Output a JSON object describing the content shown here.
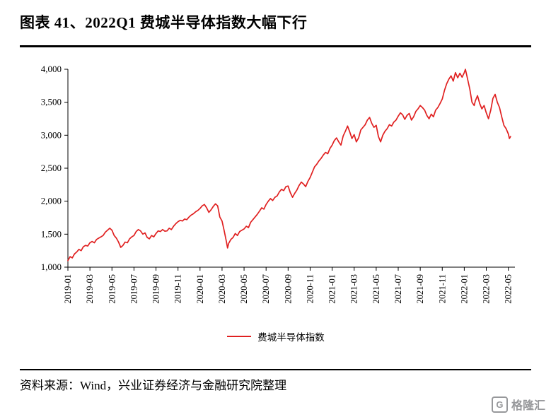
{
  "header": {
    "title": "图表 41、2022Q1 费城半导体指数大幅下行"
  },
  "footer": {
    "source": "资料来源：Wind，兴业证券经济与金融研究院整理",
    "watermark": "格隆汇",
    "watermark_letter": "G"
  },
  "chart_data": {
    "type": "line",
    "title": "图表 41、2022Q1 费城半导体指数大幅下行",
    "legend": [
      "费城半导体指数"
    ],
    "legend_position": "bottom",
    "grid": false,
    "line_color": "#e02020",
    "xlabel": "",
    "ylabel": "",
    "ylim": [
      1000,
      4000
    ],
    "y_ticks": [
      1000,
      1500,
      2000,
      2500,
      3000,
      3500,
      4000
    ],
    "y_tick_labels": [
      "1,000",
      "1,500",
      "2,000",
      "2,500",
      "3,000",
      "3,500",
      "4,000"
    ],
    "x_tick_labels": [
      "2019-01",
      "2019-03",
      "2019-05",
      "2019-07",
      "2019-09",
      "2019-11",
      "2020-01",
      "2020-03",
      "2020-05",
      "2020-07",
      "2020-09",
      "2020-11",
      "2021-01",
      "2021-03",
      "2021-05",
      "2021-07",
      "2021-09",
      "2021-11",
      "2022-01",
      "2022-03",
      "2022-05"
    ],
    "x_tick_positions_months": [
      0,
      2,
      4,
      6,
      8,
      10,
      12,
      14,
      16,
      18,
      20,
      22,
      24,
      26,
      28,
      30,
      32,
      34,
      36,
      38,
      40
    ],
    "x_domain_months": [
      0,
      40.6
    ],
    "series": [
      {
        "name": "费城半导体指数",
        "points": [
          [
            0,
            1100
          ],
          [
            0.2,
            1160
          ],
          [
            0.4,
            1140
          ],
          [
            0.6,
            1200
          ],
          [
            0.8,
            1230
          ],
          [
            1,
            1270
          ],
          [
            1.2,
            1250
          ],
          [
            1.4,
            1310
          ],
          [
            1.6,
            1330
          ],
          [
            1.8,
            1320
          ],
          [
            2,
            1370
          ],
          [
            2.2,
            1390
          ],
          [
            2.4,
            1370
          ],
          [
            2.6,
            1420
          ],
          [
            2.8,
            1440
          ],
          [
            3,
            1460
          ],
          [
            3.2,
            1480
          ],
          [
            3.4,
            1530
          ],
          [
            3.6,
            1560
          ],
          [
            3.8,
            1590
          ],
          [
            4,
            1560
          ],
          [
            4.2,
            1480
          ],
          [
            4.4,
            1440
          ],
          [
            4.6,
            1380
          ],
          [
            4.8,
            1300
          ],
          [
            5,
            1330
          ],
          [
            5.2,
            1380
          ],
          [
            5.4,
            1370
          ],
          [
            5.6,
            1430
          ],
          [
            5.8,
            1460
          ],
          [
            6,
            1480
          ],
          [
            6.2,
            1540
          ],
          [
            6.4,
            1570
          ],
          [
            6.6,
            1550
          ],
          [
            6.8,
            1500
          ],
          [
            7,
            1520
          ],
          [
            7.2,
            1450
          ],
          [
            7.4,
            1430
          ],
          [
            7.6,
            1480
          ],
          [
            7.8,
            1460
          ],
          [
            8,
            1510
          ],
          [
            8.2,
            1550
          ],
          [
            8.4,
            1540
          ],
          [
            8.6,
            1570
          ],
          [
            8.8,
            1545
          ],
          [
            9,
            1550
          ],
          [
            9.2,
            1590
          ],
          [
            9.4,
            1570
          ],
          [
            9.6,
            1620
          ],
          [
            9.8,
            1660
          ],
          [
            10,
            1690
          ],
          [
            10.2,
            1710
          ],
          [
            10.4,
            1700
          ],
          [
            10.6,
            1730
          ],
          [
            10.8,
            1720
          ],
          [
            11,
            1760
          ],
          [
            11.2,
            1790
          ],
          [
            11.4,
            1810
          ],
          [
            11.6,
            1840
          ],
          [
            11.8,
            1860
          ],
          [
            12,
            1890
          ],
          [
            12.2,
            1930
          ],
          [
            12.4,
            1950
          ],
          [
            12.6,
            1900
          ],
          [
            12.8,
            1830
          ],
          [
            13,
            1870
          ],
          [
            13.2,
            1920
          ],
          [
            13.4,
            1960
          ],
          [
            13.6,
            1930
          ],
          [
            13.8,
            1760
          ],
          [
            14,
            1700
          ],
          [
            14.2,
            1550
          ],
          [
            14.4,
            1380
          ],
          [
            14.5,
            1290
          ],
          [
            14.6,
            1360
          ],
          [
            14.8,
            1420
          ],
          [
            15,
            1450
          ],
          [
            15.2,
            1510
          ],
          [
            15.4,
            1480
          ],
          [
            15.6,
            1540
          ],
          [
            15.8,
            1560
          ],
          [
            16,
            1580
          ],
          [
            16.2,
            1620
          ],
          [
            16.4,
            1600
          ],
          [
            16.6,
            1680
          ],
          [
            16.8,
            1720
          ],
          [
            17,
            1760
          ],
          [
            17.2,
            1800
          ],
          [
            17.4,
            1850
          ],
          [
            17.6,
            1900
          ],
          [
            17.8,
            1880
          ],
          [
            18,
            1950
          ],
          [
            18.2,
            2000
          ],
          [
            18.4,
            2040
          ],
          [
            18.6,
            2010
          ],
          [
            18.8,
            2060
          ],
          [
            19,
            2080
          ],
          [
            19.2,
            2140
          ],
          [
            19.4,
            2180
          ],
          [
            19.6,
            2160
          ],
          [
            19.8,
            2220
          ],
          [
            20,
            2230
          ],
          [
            20.2,
            2130
          ],
          [
            20.4,
            2060
          ],
          [
            20.6,
            2120
          ],
          [
            20.8,
            2170
          ],
          [
            21,
            2240
          ],
          [
            21.2,
            2290
          ],
          [
            21.4,
            2260
          ],
          [
            21.6,
            2220
          ],
          [
            21.8,
            2300
          ],
          [
            22,
            2360
          ],
          [
            22.2,
            2440
          ],
          [
            22.4,
            2520
          ],
          [
            22.6,
            2560
          ],
          [
            22.8,
            2610
          ],
          [
            23,
            2650
          ],
          [
            23.2,
            2700
          ],
          [
            23.4,
            2740
          ],
          [
            23.6,
            2720
          ],
          [
            23.8,
            2800
          ],
          [
            24,
            2850
          ],
          [
            24.2,
            2920
          ],
          [
            24.4,
            2960
          ],
          [
            24.6,
            2900
          ],
          [
            24.8,
            2850
          ],
          [
            25,
            2990
          ],
          [
            25.2,
            3060
          ],
          [
            25.4,
            3140
          ],
          [
            25.6,
            3050
          ],
          [
            25.8,
            2950
          ],
          [
            26,
            3010
          ],
          [
            26.2,
            2900
          ],
          [
            26.4,
            2960
          ],
          [
            26.6,
            3080
          ],
          [
            26.8,
            3120
          ],
          [
            27,
            3160
          ],
          [
            27.2,
            3230
          ],
          [
            27.4,
            3270
          ],
          [
            27.6,
            3180
          ],
          [
            27.8,
            3120
          ],
          [
            28,
            3150
          ],
          [
            28.2,
            2980
          ],
          [
            28.4,
            2900
          ],
          [
            28.6,
            3000
          ],
          [
            28.8,
            3060
          ],
          [
            29,
            3100
          ],
          [
            29.2,
            3160
          ],
          [
            29.4,
            3140
          ],
          [
            29.6,
            3200
          ],
          [
            29.8,
            3230
          ],
          [
            30,
            3290
          ],
          [
            30.2,
            3340
          ],
          [
            30.4,
            3310
          ],
          [
            30.6,
            3240
          ],
          [
            30.8,
            3300
          ],
          [
            31,
            3330
          ],
          [
            31.2,
            3230
          ],
          [
            31.4,
            3280
          ],
          [
            31.6,
            3360
          ],
          [
            31.8,
            3400
          ],
          [
            32,
            3450
          ],
          [
            32.2,
            3420
          ],
          [
            32.4,
            3380
          ],
          [
            32.6,
            3300
          ],
          [
            32.8,
            3250
          ],
          [
            33,
            3320
          ],
          [
            33.2,
            3280
          ],
          [
            33.4,
            3380
          ],
          [
            33.6,
            3420
          ],
          [
            33.8,
            3480
          ],
          [
            34,
            3550
          ],
          [
            34.2,
            3680
          ],
          [
            34.4,
            3780
          ],
          [
            34.6,
            3850
          ],
          [
            34.8,
            3900
          ],
          [
            35,
            3820
          ],
          [
            35.2,
            3950
          ],
          [
            35.4,
            3870
          ],
          [
            35.6,
            3940
          ],
          [
            35.8,
            3880
          ],
          [
            36,
            3950
          ],
          [
            36.1,
            4000
          ],
          [
            36.3,
            3850
          ],
          [
            36.5,
            3700
          ],
          [
            36.7,
            3500
          ],
          [
            36.9,
            3450
          ],
          [
            37,
            3520
          ],
          [
            37.2,
            3600
          ],
          [
            37.4,
            3480
          ],
          [
            37.6,
            3400
          ],
          [
            37.8,
            3450
          ],
          [
            38,
            3340
          ],
          [
            38.2,
            3250
          ],
          [
            38.4,
            3380
          ],
          [
            38.6,
            3560
          ],
          [
            38.8,
            3620
          ],
          [
            39,
            3500
          ],
          [
            39.2,
            3420
          ],
          [
            39.4,
            3280
          ],
          [
            39.6,
            3150
          ],
          [
            39.8,
            3100
          ],
          [
            40,
            3020
          ],
          [
            40.1,
            2950
          ],
          [
            40.2,
            2980
          ]
        ]
      }
    ]
  }
}
